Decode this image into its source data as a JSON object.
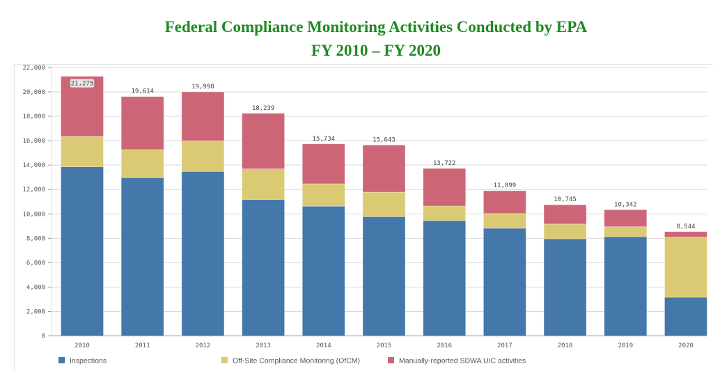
{
  "title_line1": "Federal Compliance Monitoring Activities Conducted by EPA",
  "title_line2": "FY 2010 – FY 2020",
  "chart_data": {
    "type": "bar",
    "stacked": true,
    "title": "Federal Compliance Monitoring Activities Conducted by EPA FY 2010 – FY 2020",
    "xlabel": "",
    "ylabel": "",
    "ylim": [
      0,
      22000
    ],
    "yticks": [
      0,
      2000,
      4000,
      6000,
      8000,
      10000,
      12000,
      14000,
      16000,
      18000,
      20000,
      22000
    ],
    "ytick_labels": [
      "0",
      "2,000",
      "4,000",
      "6,000",
      "8,000",
      "10,000",
      "12,000",
      "14,000",
      "16,000",
      "18,000",
      "20,000",
      "22,000"
    ],
    "grid": true,
    "legend": "bottom",
    "categories": [
      "2010",
      "2011",
      "2012",
      "2013",
      "2014",
      "2015",
      "2016",
      "2017",
      "2018",
      "2019",
      "2020"
    ],
    "series": [
      {
        "name": "Inspections",
        "color": "#4477aa",
        "values": [
          13860,
          12970,
          13480,
          11180,
          10630,
          9770,
          9450,
          8820,
          7960,
          8130,
          3170
        ]
      },
      {
        "name": "Off-Site Compliance Monitoring (OfCM)",
        "color": "#dbca74",
        "values": [
          2490,
          2300,
          2510,
          2510,
          1840,
          2010,
          1190,
          1210,
          1210,
          820,
          4920
        ]
      },
      {
        "name": "Manually-reported SDWA UIC activities",
        "color": "#cc6677",
        "values": [
          4925,
          4344,
          4008,
          4549,
          3264,
          3863,
          3082,
          1869,
          1575,
          1392,
          454
        ]
      }
    ],
    "totals": [
      21275,
      19614,
      19998,
      18239,
      15734,
      15643,
      13722,
      11899,
      10745,
      10342,
      8544
    ],
    "total_labels": [
      "21,275",
      "19,614",
      "19,998",
      "18,239",
      "15,734",
      "15,643",
      "13,722",
      "11,899",
      "10,745",
      "10,342",
      "8,544"
    ]
  }
}
